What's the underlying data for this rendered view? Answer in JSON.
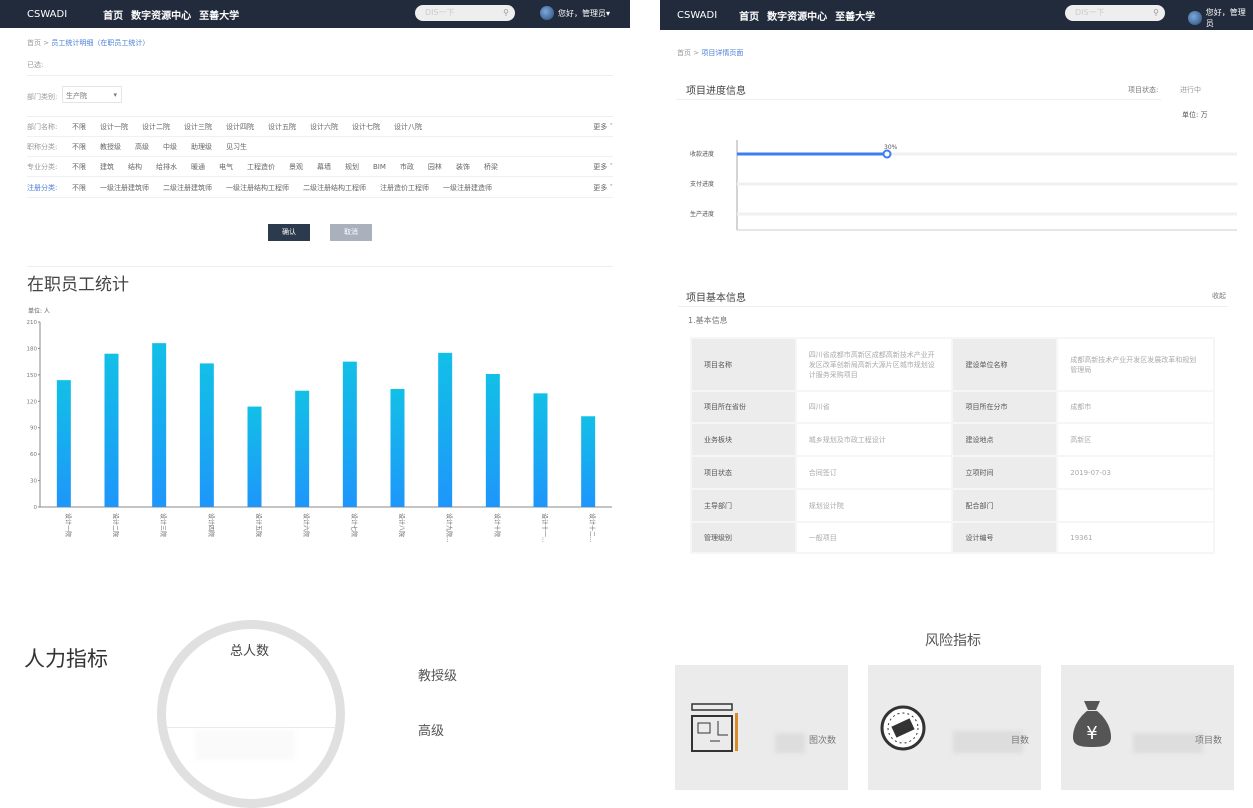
{
  "nav": {
    "brand": "CSWADI",
    "links": [
      "首页",
      "数字资源中心",
      "至善大学"
    ],
    "search_placeholder": "DIS一下",
    "user": "您好，管理员"
  },
  "left": {
    "breadcrumb": {
      "home": "首页",
      "current": "员工统计明细（在职员工统计）"
    },
    "selected_label": "已选:",
    "dept_type": {
      "label": "部门类别:",
      "value": "生产院"
    },
    "filters": [
      {
        "label": "部门名称:",
        "options": [
          "不限",
          "设计一院",
          "设计二院",
          "设计三院",
          "设计四院",
          "设计五院",
          "设计六院",
          "设计七院",
          "设计八院"
        ],
        "more": "更多"
      },
      {
        "label": "职称分类:",
        "options": [
          "不限",
          "教授级",
          "高级",
          "中级",
          "助理级",
          "见习生"
        ],
        "more": ""
      },
      {
        "label": "专业分类:",
        "options": [
          "不限",
          "建筑",
          "结构",
          "给排水",
          "暖通",
          "电气",
          "工程造价",
          "景观",
          "幕墙",
          "规划",
          "BIM",
          "市政",
          "园林",
          "装饰",
          "桥梁"
        ],
        "more": "更多"
      },
      {
        "label": "注册分类:",
        "options": [
          "不限",
          "一级注册建筑师",
          "二级注册建筑师",
          "一级注册结构工程师",
          "二级注册结构工程师",
          "注册造价工程师",
          "一级注册建造师"
        ],
        "more": "更多"
      }
    ],
    "confirm": "确认",
    "cancel": "取消",
    "section_title": "在职员工统计",
    "hr_title": "人力指标",
    "total_label": "总人数",
    "levels": [
      "教授级",
      "高级"
    ]
  },
  "chart_data": {
    "type": "bar",
    "unit_label": "单位: 人",
    "categories": [
      "设计一院",
      "设计二院",
      "设计三院",
      "设计四院",
      "设计五院",
      "设计六院",
      "设计七院",
      "设计八院",
      "设计九院...",
      "设计十院",
      "设计十一...",
      "设计十二..."
    ],
    "values": [
      144,
      174,
      186,
      163,
      114,
      132,
      165,
      134,
      175,
      151,
      129,
      103
    ],
    "ylim": [
      0,
      210
    ],
    "yticks": [
      0,
      30,
      60,
      90,
      120,
      150,
      180,
      210
    ],
    "color_top": "#12c0e6",
    "color_bottom": "#1e96fb"
  },
  "right": {
    "breadcrumb": {
      "home": "首页",
      "current": "项目详情页面"
    },
    "progress": {
      "title": "项目进度信息",
      "status_label": "项目状态:",
      "status_value": "进行中",
      "unit": "单位: 万",
      "rows": [
        {
          "label": "收款进度",
          "value": 30,
          "text": "30%"
        },
        {
          "label": "支付进度",
          "value": 0
        },
        {
          "label": "生产进度",
          "value": 0
        }
      ]
    },
    "basic": {
      "title": "项目基本信息",
      "collapse": "收起",
      "subtitle": "1.基本信息",
      "rows": [
        [
          "项目名称",
          "四川省成都市高新区成都高新技术产业开发区改革创新局高新大源片区城市规划设计服务采购项目",
          "建设单位名称",
          "成都高新技术产业开发区发展改革和规划管理局"
        ],
        [
          "项目所在省份",
          "四川省",
          "项目所在分市",
          "成都市"
        ],
        [
          "业务板块",
          "城乡规划及市政工程设计",
          "建设地点",
          "高新区"
        ],
        [
          "项目状态",
          "合同签订",
          "立项时间",
          "2019-07-03"
        ],
        [
          "主导部门",
          "规划设计院",
          "配合部门",
          ""
        ],
        [
          "管理级别",
          "一般项目",
          "设计编号",
          "19361"
        ]
      ]
    },
    "risk": {
      "title": "风险指标",
      "cards": [
        {
          "icon": "blueprint-icon",
          "label": "图次数"
        },
        {
          "icon": "stamp-icon",
          "label": "目数"
        },
        {
          "icon": "money-bag-icon",
          "label": "项目数"
        }
      ]
    }
  }
}
